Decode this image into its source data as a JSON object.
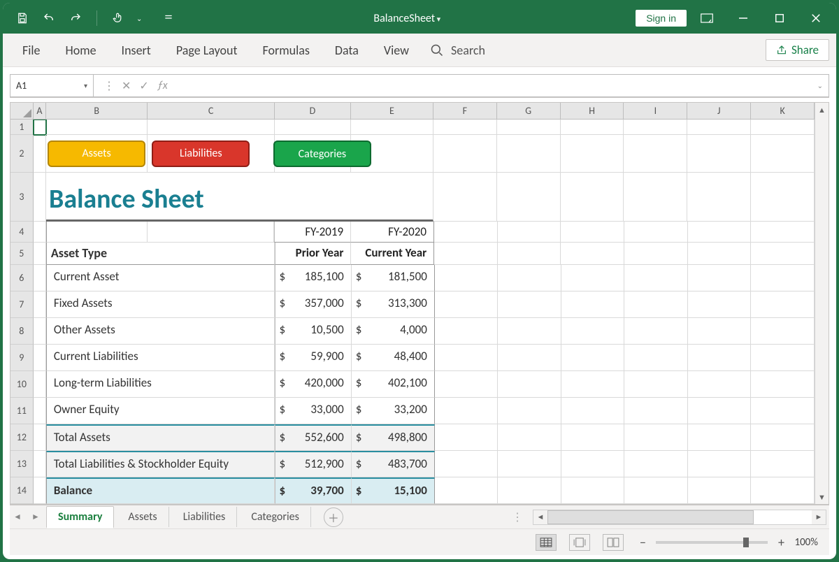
{
  "window": {
    "title": "BalanceSheet",
    "signin_label": "Sign in"
  },
  "ribbon": {
    "tabs": [
      "File",
      "Home",
      "Insert",
      "Page Layout",
      "Formulas",
      "Data",
      "View"
    ],
    "search_label": "Search",
    "share_label": "Share"
  },
  "namebox": {
    "value": "A1"
  },
  "formula_bar": {
    "value": ""
  },
  "columns": [
    "A",
    "B",
    "C",
    "D",
    "E",
    "F",
    "G",
    "H",
    "I",
    "J",
    "K"
  ],
  "row_numbers": [
    1,
    2,
    3,
    4,
    5,
    6,
    7,
    8,
    9,
    10,
    11,
    12,
    13,
    14
  ],
  "sheet_buttons": {
    "assets": {
      "label": "Assets",
      "bg": "#f6b900",
      "border": "#b48605"
    },
    "liabilities": {
      "label": "Liabilities",
      "bg": "#d9362b",
      "border": "#8f1e16"
    },
    "categories": {
      "label": "Categories",
      "bg": "#1aa54b",
      "border": "#0d6a2f"
    }
  },
  "title": "Balance Sheet",
  "table": {
    "fy_prior": "FY-2019",
    "fy_current": "FY-2020",
    "col_asset_type": "Asset Type",
    "col_prior": "Prior Year",
    "col_current": "Current Year",
    "rows": [
      {
        "label": "Current Asset",
        "prior": "185,100",
        "current": "181,500"
      },
      {
        "label": "Fixed Assets",
        "prior": "357,000",
        "current": "313,300"
      },
      {
        "label": "Other Assets",
        "prior": "10,500",
        "current": "4,000"
      },
      {
        "label": "Current Liabilities",
        "prior": "59,900",
        "current": "48,400"
      },
      {
        "label": "Long-term Liabilities",
        "prior": "420,000",
        "current": "402,100"
      },
      {
        "label": "Owner Equity",
        "prior": "33,000",
        "current": "33,200"
      }
    ],
    "total_assets": {
      "label": "Total Assets",
      "prior": "552,600",
      "current": "498,800"
    },
    "total_liab_eq": {
      "label": "Total Liabilities & Stockholder Equity",
      "prior": "512,900",
      "current": "483,700"
    },
    "balance": {
      "label": "Balance",
      "prior": "39,700",
      "current": "15,100"
    },
    "currency": "$",
    "colors": {
      "title": "#1a7f91",
      "summary_row_bg": "#f2f2f2",
      "balance_row_bg": "#d9edf2",
      "teal_border": "#2a8ea0",
      "grid_border": "#999999"
    }
  },
  "sheet_tabs": {
    "active": "Summary",
    "tabs": [
      "Summary",
      "Assets",
      "Liabilities",
      "Categories"
    ]
  },
  "status": {
    "zoom": "100%"
  }
}
